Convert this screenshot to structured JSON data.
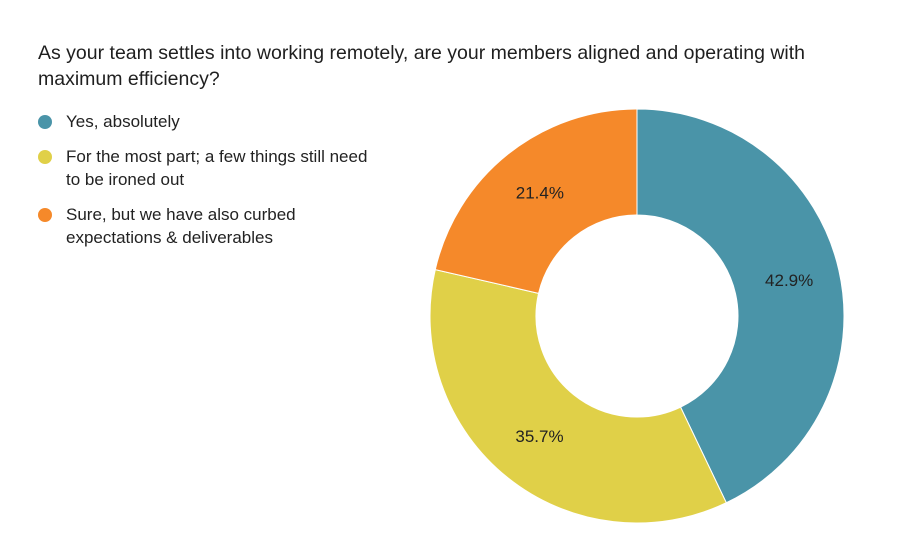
{
  "chart_data": {
    "type": "pie",
    "donut": true,
    "title": "As your team settles into working remotely, are your members aligned and operating with maximum efficiency?",
    "legend_position": "left",
    "categories": [
      "Yes, absolutely",
      "For the most part; a few things still need to be ironed out",
      "Sure, but we have also curbed expectations & deliverables"
    ],
    "values": [
      42.9,
      35.7,
      21.4
    ],
    "data_labels": [
      "42.9%",
      "35.7%",
      "21.4%"
    ],
    "colors": [
      "#4A94A8",
      "#E0D048",
      "#F5892A"
    ]
  }
}
